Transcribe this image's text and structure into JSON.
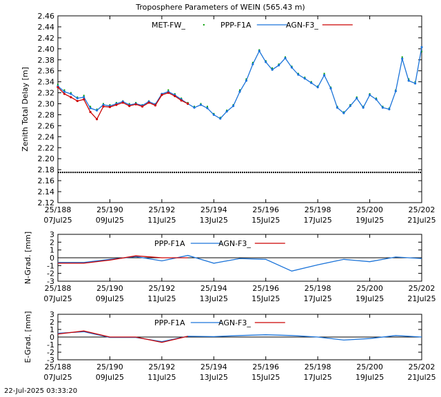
{
  "title": "Troposphere Parameters of WEIN (565.43 m)",
  "footer": "22-Jul-2025 03:33:20",
  "colors": {
    "met": "#00a000",
    "ppp": "#1a73d9",
    "agn": "#cc0000",
    "ref": "#000000"
  },
  "chart_data": [
    {
      "type": "line",
      "id": "ztd",
      "ylabel": "Zenith Total Delay [m]",
      "xlim": [
        188,
        202
      ],
      "ylim": [
        2.12,
        2.46
      ],
      "yticks": [
        2.12,
        2.14,
        2.16,
        2.18,
        2.2,
        2.22,
        2.24,
        2.26,
        2.28,
        2.3,
        2.32,
        2.34,
        2.36,
        2.38,
        2.4,
        2.42,
        2.44,
        2.46
      ],
      "xticks": [
        {
          "x": 188,
          "top": "25/188",
          "bottom": "07Jul25"
        },
        {
          "x": 190,
          "top": "25/190",
          "bottom": "09Jul25"
        },
        {
          "x": 192,
          "top": "25/192",
          "bottom": "11Jul25"
        },
        {
          "x": 194,
          "top": "25/194",
          "bottom": "13Jul25"
        },
        {
          "x": 196,
          "top": "25/196",
          "bottom": "15Jul25"
        },
        {
          "x": 198,
          "top": "25/198",
          "bottom": "17Jul25"
        },
        {
          "x": 200,
          "top": "25/200",
          "bottom": "19Jul25"
        },
        {
          "x": 202,
          "top": "25/202",
          "bottom": "21Jul25"
        }
      ],
      "grid": false,
      "legend_position": "top",
      "series": [
        {
          "name": "MET-FW_",
          "style": "points",
          "color": "#00a000",
          "x": [
            188.0,
            188.25,
            188.5,
            188.75,
            189.0,
            189.25,
            189.5,
            189.75,
            190.0,
            190.25,
            190.5,
            190.75,
            191.0,
            191.25,
            191.5,
            191.75,
            192.0,
            192.25,
            192.5,
            192.75,
            193.0,
            193.25,
            193.5,
            193.75,
            194.0,
            194.25,
            194.5,
            194.75,
            195.0,
            195.25,
            195.5,
            195.75,
            196.0,
            196.25,
            196.5,
            196.75,
            197.0,
            197.25,
            197.5,
            197.75,
            198.0,
            198.25,
            198.5,
            198.75,
            199.0,
            199.25,
            199.5,
            199.75,
            200.0,
            200.25,
            200.5,
            200.75,
            201.0,
            201.25,
            201.5,
            201.75,
            202.0
          ],
          "y": [
            2.335,
            2.325,
            2.32,
            2.312,
            2.315,
            2.295,
            2.29,
            2.3,
            2.298,
            2.302,
            2.305,
            2.3,
            2.302,
            2.298,
            2.305,
            2.3,
            2.318,
            2.325,
            2.318,
            2.31,
            2.302,
            2.295,
            2.3,
            2.295,
            2.282,
            2.275,
            2.288,
            2.298,
            2.325,
            2.345,
            2.375,
            2.398,
            2.378,
            2.365,
            2.372,
            2.385,
            2.368,
            2.355,
            2.348,
            2.34,
            2.332,
            2.355,
            2.33,
            2.295,
            2.285,
            2.298,
            2.312,
            2.295,
            2.318,
            2.31,
            2.295,
            2.292,
            2.325,
            2.385,
            2.345,
            2.34,
            2.395
          ]
        },
        {
          "name": "PPP-F1A",
          "style": "line-points",
          "color": "#1a73d9",
          "x": [
            188.0,
            188.25,
            188.5,
            188.75,
            189.0,
            189.25,
            189.5,
            189.75,
            190.0,
            190.25,
            190.5,
            190.75,
            191.0,
            191.25,
            191.5,
            191.75,
            192.0,
            192.25,
            192.5,
            192.75,
            193.0,
            193.25,
            193.5,
            193.75,
            194.0,
            194.25,
            194.5,
            194.75,
            195.0,
            195.25,
            195.5,
            195.75,
            196.0,
            196.25,
            196.5,
            196.75,
            197.0,
            197.25,
            197.5,
            197.75,
            198.0,
            198.25,
            198.5,
            198.75,
            199.0,
            199.25,
            199.5,
            199.75,
            200.0,
            200.25,
            200.5,
            200.75,
            201.0,
            201.25,
            201.5,
            201.75,
            202.0
          ],
          "y": [
            2.332,
            2.322,
            2.318,
            2.31,
            2.312,
            2.292,
            2.288,
            2.298,
            2.296,
            2.3,
            2.304,
            2.298,
            2.3,
            2.297,
            2.304,
            2.299,
            2.318,
            2.322,
            2.316,
            2.308,
            2.3,
            2.293,
            2.298,
            2.292,
            2.28,
            2.273,
            2.286,
            2.296,
            2.322,
            2.342,
            2.372,
            2.396,
            2.376,
            2.362,
            2.37,
            2.383,
            2.366,
            2.353,
            2.346,
            2.338,
            2.33,
            2.352,
            2.328,
            2.293,
            2.283,
            2.296,
            2.31,
            2.293,
            2.316,
            2.308,
            2.293,
            2.29,
            2.323,
            2.382,
            2.342,
            2.337,
            2.403
          ]
        },
        {
          "name": "AGN-F3_",
          "style": "line-points",
          "color": "#cc0000",
          "x": [
            188.0,
            188.25,
            188.5,
            188.75,
            189.0,
            189.25,
            189.5,
            189.75,
            190.0,
            190.25,
            190.5,
            190.75,
            191.0,
            191.25,
            191.5,
            191.75,
            192.0,
            192.25,
            192.5,
            192.75,
            193.0
          ],
          "y": [
            2.33,
            2.318,
            2.312,
            2.305,
            2.308,
            2.285,
            2.272,
            2.295,
            2.294,
            2.298,
            2.302,
            2.296,
            2.299,
            2.295,
            2.302,
            2.297,
            2.316,
            2.32,
            2.314,
            2.306,
            2.3
          ]
        },
        {
          "name": "",
          "style": "reference-line",
          "color": "#000000",
          "x": [
            188,
            202
          ],
          "y": [
            2.175,
            2.175
          ]
        }
      ]
    },
    {
      "type": "line",
      "id": "ngrad",
      "ylabel": "N-Grad. [mm]",
      "xlim": [
        188,
        202
      ],
      "ylim": [
        -3,
        3
      ],
      "yticks": [
        -3,
        -2,
        -1,
        0,
        1,
        2,
        3
      ],
      "xticks": [
        {
          "x": 188,
          "top": "25/188",
          "bottom": "07Jul25"
        },
        {
          "x": 190,
          "top": "25/190",
          "bottom": "09Jul25"
        },
        {
          "x": 192,
          "top": "25/192",
          "bottom": "11Jul25"
        },
        {
          "x": 194,
          "top": "25/194",
          "bottom": "13Jul25"
        },
        {
          "x": 196,
          "top": "25/196",
          "bottom": "15Jul25"
        },
        {
          "x": 198,
          "top": "25/198",
          "bottom": "17Jul25"
        },
        {
          "x": 200,
          "top": "25/200",
          "bottom": "19Jul25"
        },
        {
          "x": 202,
          "top": "25/202",
          "bottom": "21Jul25"
        }
      ],
      "grid": false,
      "legend_position": "top",
      "zero_line": true,
      "series": [
        {
          "name": "PPP-F1A",
          "color": "#1a73d9",
          "x": [
            188,
            189,
            190,
            191,
            192,
            193,
            194,
            195,
            196,
            197,
            198,
            199,
            200,
            201,
            202
          ],
          "y": [
            -0.6,
            -0.6,
            -0.2,
            0.15,
            -0.4,
            0.3,
            -0.7,
            -0.1,
            -0.2,
            -1.7,
            -0.9,
            -0.2,
            -0.5,
            0.1,
            -0.1
          ]
        },
        {
          "name": "AGN-F3_",
          "color": "#cc0000",
          "x": [
            188,
            189,
            190,
            191,
            192,
            193
          ],
          "y": [
            -0.7,
            -0.7,
            -0.3,
            0.25,
            0.0,
            0.0
          ]
        }
      ]
    },
    {
      "type": "line",
      "id": "egrad",
      "ylabel": "E-Grad. [mm]",
      "xlim": [
        188,
        202
      ],
      "ylim": [
        -3,
        3
      ],
      "yticks": [
        -3,
        -2,
        -1,
        0,
        1,
        2,
        3
      ],
      "xticks": [
        {
          "x": 188,
          "top": "25/188",
          "bottom": "07Jul25"
        },
        {
          "x": 190,
          "top": "25/190",
          "bottom": "09Jul25"
        },
        {
          "x": 192,
          "top": "25/192",
          "bottom": "11Jul25"
        },
        {
          "x": 194,
          "top": "25/194",
          "bottom": "13Jul25"
        },
        {
          "x": 196,
          "top": "25/196",
          "bottom": "15Jul25"
        },
        {
          "x": 198,
          "top": "25/198",
          "bottom": "17Jul25"
        },
        {
          "x": 200,
          "top": "25/200",
          "bottom": "19Jul25"
        },
        {
          "x": 202,
          "top": "25/202",
          "bottom": "21Jul25"
        }
      ],
      "grid": false,
      "legend_position": "top",
      "zero_line": true,
      "series": [
        {
          "name": "PPP-F1A",
          "color": "#1a73d9",
          "x": [
            188,
            189,
            190,
            191,
            192,
            193,
            194,
            195,
            196,
            197,
            198,
            199,
            200,
            201,
            202
          ],
          "y": [
            0.5,
            0.7,
            -0.05,
            -0.05,
            -0.6,
            0.1,
            0.05,
            0.2,
            0.3,
            0.2,
            0.0,
            -0.4,
            -0.2,
            0.2,
            0.0
          ]
        },
        {
          "name": "AGN-F3_",
          "color": "#cc0000",
          "x": [
            188,
            189,
            190,
            191,
            192,
            193
          ],
          "y": [
            0.4,
            0.8,
            0.0,
            0.0,
            -0.7,
            0.1
          ]
        }
      ]
    }
  ]
}
